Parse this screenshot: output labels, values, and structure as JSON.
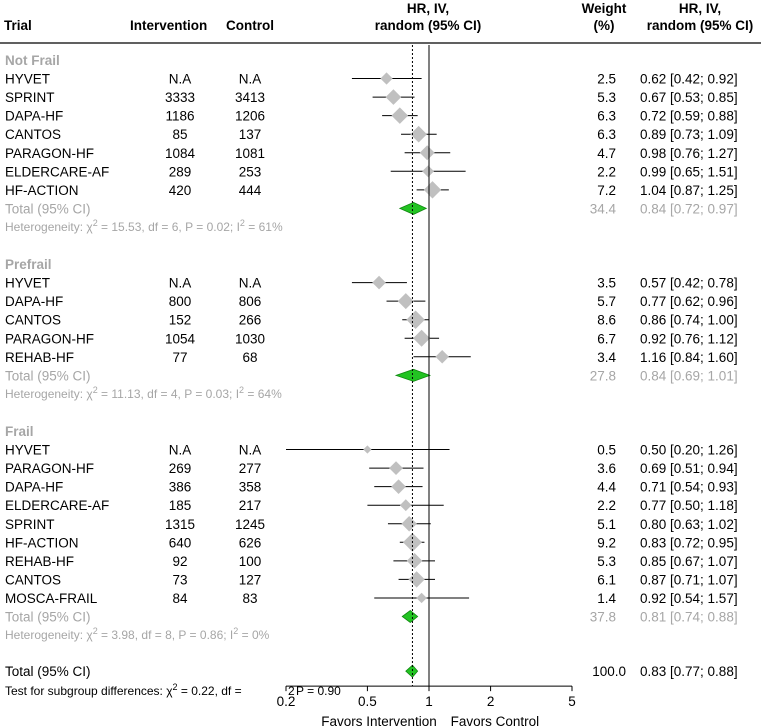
{
  "chart_data": {
    "type": "forest",
    "x_scale": "log",
    "xlim": [
      0.2,
      5
    ],
    "ticks": [
      "0.2",
      "0.5",
      "1",
      "2",
      "5"
    ],
    "tick_values": [
      0.2,
      0.5,
      1,
      2,
      5
    ],
    "reference_line": 1,
    "overall_dotted_line": 0.83,
    "xlabel_left": "Favors Intervention",
    "xlabel_right": "Favors Control",
    "columns": {
      "trial": "Trial",
      "intervention": "Intervention",
      "control": "Control",
      "effect_1": "HR, IV,",
      "effect_2": "random (95% CI)",
      "weight_1": "Weight",
      "weight_2": "(%)",
      "hr_1": "HR, IV,",
      "hr_2": "random (95% CI)"
    },
    "groups": [
      {
        "name": "Not Frail",
        "studies": [
          {
            "trial": "HYVET",
            "intervention": "N.A",
            "control": "N.A",
            "hr": 0.62,
            "lo": 0.42,
            "hi": 0.92,
            "weight": "2.5",
            "ci_text": "0.62 [0.42; 0.92]"
          },
          {
            "trial": "SPRINT",
            "intervention": "3333",
            "control": "3413",
            "hr": 0.67,
            "lo": 0.53,
            "hi": 0.85,
            "weight": "5.3",
            "ci_text": "0.67 [0.53; 0.85]"
          },
          {
            "trial": "DAPA-HF",
            "intervention": "1186",
            "control": "1206",
            "hr": 0.72,
            "lo": 0.59,
            "hi": 0.88,
            "weight": "6.3",
            "ci_text": "0.72 [0.59; 0.88]"
          },
          {
            "trial": "CANTOS",
            "intervention": "85",
            "control": "137",
            "hr": 0.89,
            "lo": 0.73,
            "hi": 1.09,
            "weight": "6.3",
            "ci_text": "0.89 [0.73; 1.09]"
          },
          {
            "trial": "PARAGON-HF",
            "intervention": "1084",
            "control": "1081",
            "hr": 0.98,
            "lo": 0.76,
            "hi": 1.27,
            "weight": "4.7",
            "ci_text": "0.98 [0.76; 1.27]"
          },
          {
            "trial": "ELDERCARE-AF",
            "intervention": "289",
            "control": "253",
            "hr": 0.99,
            "lo": 0.65,
            "hi": 1.51,
            "weight": "2.2",
            "ci_text": "0.99 [0.65; 1.51]"
          },
          {
            "trial": "HF-ACTION",
            "intervention": "420",
            "control": "444",
            "hr": 1.04,
            "lo": 0.87,
            "hi": 1.25,
            "weight": "7.2",
            "ci_text": "1.04 [0.87; 1.25]"
          }
        ],
        "total": {
          "label": "Total (95% CI)",
          "hr": 0.84,
          "lo": 0.72,
          "hi": 0.97,
          "weight": "34.4",
          "ci_text": "0.84 [0.72; 0.97]"
        },
        "heterogeneity": {
          "prefix": "Heterogeneity: ",
          "chi_symbol": "χ",
          "sup1": "2",
          "middle": " = 15.53, df = 6, P = 0.02; I",
          "sup2": "2",
          "suffix": " = 61%"
        }
      },
      {
        "name": "Prefrail",
        "studies": [
          {
            "trial": "HYVET",
            "intervention": "N.A",
            "control": "N.A",
            "hr": 0.57,
            "lo": 0.42,
            "hi": 0.78,
            "weight": "3.5",
            "ci_text": "0.57 [0.42; 0.78]"
          },
          {
            "trial": "DAPA-HF",
            "intervention": "800",
            "control": "806",
            "hr": 0.77,
            "lo": 0.62,
            "hi": 0.96,
            "weight": "5.7",
            "ci_text": "0.77 [0.62; 0.96]"
          },
          {
            "trial": "CANTOS",
            "intervention": "152",
            "control": "266",
            "hr": 0.86,
            "lo": 0.74,
            "hi": 1.0,
            "weight": "8.6",
            "ci_text": "0.86 [0.74; 1.00]"
          },
          {
            "trial": "PARAGON-HF",
            "intervention": "1054",
            "control": "1030",
            "hr": 0.92,
            "lo": 0.76,
            "hi": 1.12,
            "weight": "6.7",
            "ci_text": "0.92 [0.76; 1.12]"
          },
          {
            "trial": "REHAB-HF",
            "intervention": "77",
            "control": "68",
            "hr": 1.16,
            "lo": 0.84,
            "hi": 1.6,
            "weight": "3.4",
            "ci_text": "1.16 [0.84; 1.60]"
          }
        ],
        "total": {
          "label": "Total (95% CI)",
          "hr": 0.84,
          "lo": 0.69,
          "hi": 1.01,
          "weight": "27.8",
          "ci_text": "0.84 [0.69; 1.01]"
        },
        "heterogeneity": {
          "prefix": "Heterogeneity: ",
          "chi_symbol": "χ",
          "sup1": "2",
          "middle": " = 11.13, df = 4, P = 0.03; I",
          "sup2": "2",
          "suffix": " = 64%"
        }
      },
      {
        "name": "Frail",
        "studies": [
          {
            "trial": "HYVET",
            "intervention": "N.A",
            "control": "N.A",
            "hr": 0.5,
            "lo": 0.2,
            "hi": 1.26,
            "weight": "0.5",
            "ci_text": "0.50 [0.20; 1.26]"
          },
          {
            "trial": "PARAGON-HF",
            "intervention": "269",
            "control": "277",
            "hr": 0.69,
            "lo": 0.51,
            "hi": 0.94,
            "weight": "3.6",
            "ci_text": "0.69 [0.51; 0.94]"
          },
          {
            "trial": "DAPA-HF",
            "intervention": "386",
            "control": "358",
            "hr": 0.71,
            "lo": 0.54,
            "hi": 0.93,
            "weight": "4.4",
            "ci_text": "0.71 [0.54; 0.93]"
          },
          {
            "trial": "ELDERCARE-AF",
            "intervention": "185",
            "control": "217",
            "hr": 0.77,
            "lo": 0.5,
            "hi": 1.18,
            "weight": "2.2",
            "ci_text": "0.77 [0.50; 1.18]"
          },
          {
            "trial": "SPRINT",
            "intervention": "1315",
            "control": "1245",
            "hr": 0.8,
            "lo": 0.63,
            "hi": 1.02,
            "weight": "5.1",
            "ci_text": "0.80 [0.63; 1.02]"
          },
          {
            "trial": "HF-ACTION",
            "intervention": "640",
            "control": "626",
            "hr": 0.83,
            "lo": 0.72,
            "hi": 0.95,
            "weight": "9.2",
            "ci_text": "0.83 [0.72; 0.95]"
          },
          {
            "trial": "REHAB-HF",
            "intervention": "92",
            "control": "100",
            "hr": 0.85,
            "lo": 0.67,
            "hi": 1.07,
            "weight": "5.3",
            "ci_text": "0.85 [0.67; 1.07]"
          },
          {
            "trial": "CANTOS",
            "intervention": "73",
            "control": "127",
            "hr": 0.87,
            "lo": 0.71,
            "hi": 1.07,
            "weight": "6.1",
            "ci_text": "0.87 [0.71; 1.07]"
          },
          {
            "trial": "MOSCA-FRAIL",
            "intervention": "84",
            "control": "83",
            "hr": 0.92,
            "lo": 0.54,
            "hi": 1.57,
            "weight": "1.4",
            "ci_text": "0.92 [0.54; 1.57]"
          }
        ],
        "total": {
          "label": "Total (95% CI)",
          "hr": 0.81,
          "lo": 0.74,
          "hi": 0.88,
          "weight": "37.8",
          "ci_text": "0.81 [0.74; 0.88]"
        },
        "heterogeneity": {
          "prefix": "Heterogeneity: ",
          "chi_symbol": "χ",
          "sup1": "2",
          "middle": " = 3.98, df = 8, P = 0.86; I",
          "sup2": "2",
          "suffix": " = 0%"
        }
      }
    ],
    "overall": {
      "label": "Total (95% CI)",
      "hr": 0.83,
      "lo": 0.77,
      "hi": 0.88,
      "weight": "100.0",
      "ci_text": "0.83 [0.77; 0.88]"
    },
    "subgroup_test": {
      "prefix": "Test for subgroup differences: ",
      "chi_symbol": "χ",
      "sup": "2",
      "df_part": " = 0.22, df = ",
      "df_value": "2",
      "p_part": " P = 0.90"
    }
  },
  "colors": {
    "study_marker": "#c0c0c0",
    "ci_line": "#000000",
    "diamond_fill": "#22c322",
    "diamond_stroke": "#118811",
    "subgroup_text": "#a6a6a6"
  }
}
